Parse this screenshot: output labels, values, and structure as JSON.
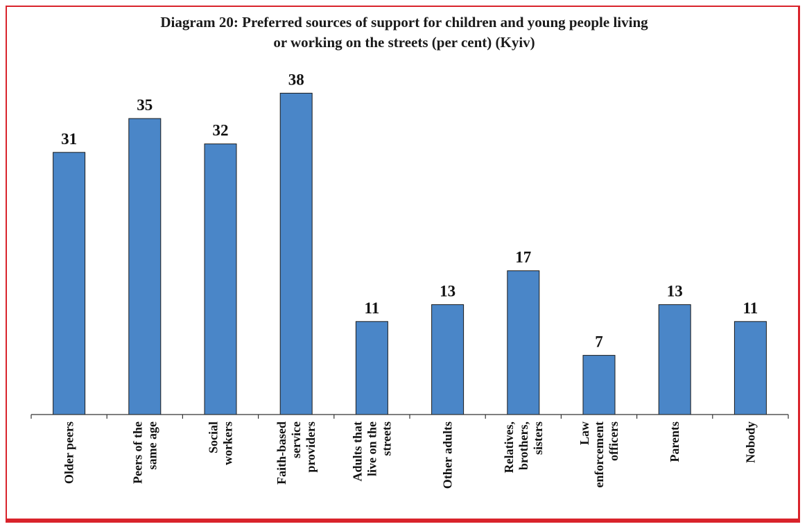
{
  "chart_data": {
    "type": "bar",
    "title": "Diagram 20: Preferred sources of support for children and young people living or working on the streets (per cent) (Kyiv)",
    "title_lines": [
      "Diagram 20: Preferred sources of support for children and young people living",
      "or working on the streets (per cent) (Kyiv)"
    ],
    "categories": [
      "Older peers",
      "Peers of the same age",
      "Social workers",
      "Faith-based service providers",
      "Adults that live on the streets",
      "Other adults",
      "Relatives, brothers, sisters",
      "Law enforcement officers",
      "Parents",
      "Nobody"
    ],
    "category_lines": [
      [
        "Older peers"
      ],
      [
        "Peers of the",
        "same age"
      ],
      [
        "Social",
        "workers"
      ],
      [
        "Faith-based",
        "service",
        "providers"
      ],
      [
        "Adults that",
        "live on the",
        "streets"
      ],
      [
        "Other adults"
      ],
      [
        "Relatives,",
        "brothers,",
        "sisters"
      ],
      [
        "Law",
        "enforcement",
        "officers"
      ],
      [
        "Parents"
      ],
      [
        "Nobody"
      ]
    ],
    "values": [
      31,
      35,
      32,
      38,
      11,
      13,
      17,
      7,
      13,
      11
    ],
    "ylim": [
      0,
      38
    ],
    "xlabel": "",
    "ylabel": "",
    "grid": false,
    "legend": "none",
    "data_labels": true
  },
  "colors": {
    "bar_fill": "#4a86c8",
    "bar_stroke": "#1a1a1a",
    "frame": "#d9232b",
    "axis": "#333333"
  }
}
